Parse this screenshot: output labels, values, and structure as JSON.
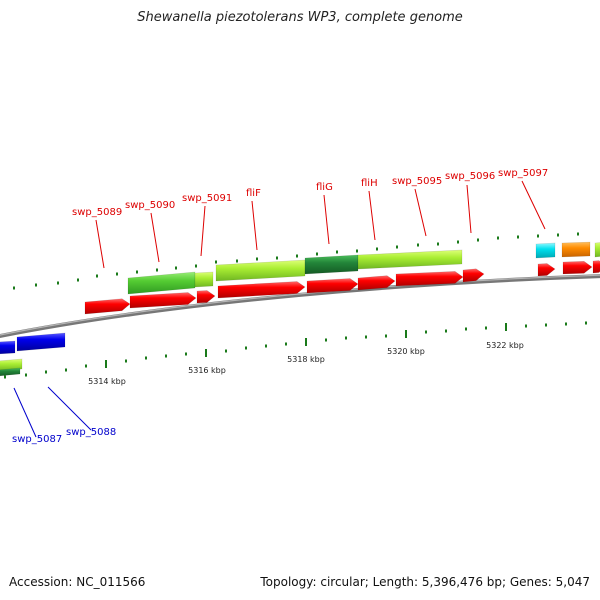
{
  "header": {
    "title": "Shewanella piezotolerans WP3, complete genome"
  },
  "footer": {
    "accession": "Accession: NC_011566",
    "summary": "Topology: circular; Length: 5,396,476 bp; Genes: 5,047"
  },
  "colors": {
    "backbone": "#888888",
    "cds_red": "#ff0000",
    "blue": "#0000ee",
    "lightgreen": "#66dd44",
    "yellowgreen": "#aaee44",
    "darkgreen": "#228833",
    "cyan": "#00e5ee",
    "orange": "#ff8c00",
    "tick": "#1a7a1a",
    "label_red": "#dd0000",
    "label_blue": "#0000cc"
  },
  "scale_labels": [
    "5314 kbp",
    "5316 kbp",
    "5318 kbp",
    "5320 kbp",
    "5322 kbp"
  ],
  "gene_labels": [
    {
      "text": "swp_5087",
      "color": "blue"
    },
    {
      "text": "swp_5088",
      "color": "blue"
    },
    {
      "text": "swp_5089",
      "color": "red"
    },
    {
      "text": "swp_5090",
      "color": "red"
    },
    {
      "text": "swp_5091",
      "color": "red"
    },
    {
      "text": "fliF",
      "color": "red"
    },
    {
      "text": "fliG",
      "color": "red"
    },
    {
      "text": "fliH",
      "color": "red"
    },
    {
      "text": "swp_5095",
      "color": "red"
    },
    {
      "text": "swp_5096",
      "color": "red"
    },
    {
      "text": "swp_5097",
      "color": "red"
    }
  ]
}
